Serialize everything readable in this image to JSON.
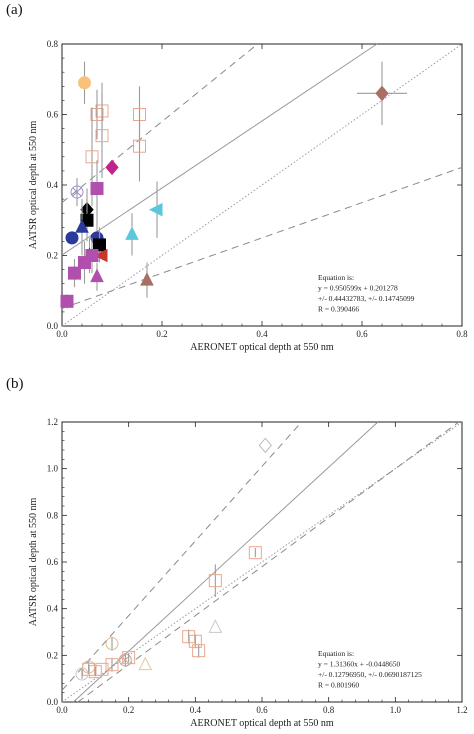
{
  "panels": [
    {
      "label": "(a)"
    },
    {
      "label": "(b)"
    }
  ],
  "colors": {
    "axis": "#222222",
    "fit_line": "#999999",
    "one_to_one": "#9a9aa8",
    "envelope": "#8a8a8a",
    "error_bar": "#9c9c9c"
  },
  "chart_data": [
    {
      "type": "scatter",
      "panel": "(a)",
      "xlabel": "AERONET optical depth at 550 nm",
      "ylabel": "AATSR optical depth at 550 nm",
      "xlim": [
        0,
        0.8
      ],
      "ylim": [
        0,
        0.8
      ],
      "xticks": [
        "0.0",
        "0.2",
        "0.4",
        "0.6",
        "0.8"
      ],
      "yticks": [
        "0.0",
        "0.2",
        "0.4",
        "0.6",
        "0.8"
      ],
      "equation": [
        "Equation is:",
        "y = 0.950599x + 0.201278",
        "+/- 0.44432783, +/- 0.14745099",
        "R = 0.390466"
      ],
      "fit": {
        "slope": 0.950599,
        "intercept": 0.201278
      },
      "envelope": {
        "upper": {
          "slope": 1.15,
          "intercept": 0.35
        },
        "lower": {
          "slope": 0.5,
          "intercept": 0.05
        }
      },
      "points": [
        {
          "x": 0.045,
          "y": 0.69,
          "marker": "circle",
          "color": "#f9c27a",
          "filled": true,
          "ey": 0.06
        },
        {
          "x": 0.08,
          "y": 0.61,
          "marker": "square",
          "color": "#e8a890",
          "filled": false,
          "ey": 0.08
        },
        {
          "x": 0.07,
          "y": 0.6,
          "marker": "square",
          "color": "#e8a890",
          "filled": false,
          "ey": 0.07
        },
        {
          "x": 0.155,
          "y": 0.6,
          "marker": "square",
          "color": "#e8a890",
          "filled": false,
          "ey": 0.08
        },
        {
          "x": 0.08,
          "y": 0.54,
          "marker": "square",
          "color": "#e8a890",
          "filled": false,
          "ey": 0.12
        },
        {
          "x": 0.155,
          "y": 0.51,
          "marker": "square",
          "color": "#e8a890",
          "filled": false,
          "ey": 0.1
        },
        {
          "x": 0.06,
          "y": 0.48,
          "marker": "square",
          "color": "#e8a890",
          "filled": false,
          "ey": 0.14
        },
        {
          "x": 0.1,
          "y": 0.45,
          "marker": "diamond",
          "color": "#c0248a",
          "filled": true,
          "ey": 0.0
        },
        {
          "x": 0.07,
          "y": 0.39,
          "marker": "square",
          "color": "#b04fae",
          "filled": true,
          "ey": 0.08
        },
        {
          "x": 0.03,
          "y": 0.38,
          "marker": "xcircle",
          "color": "#9b8ec8",
          "filled": false,
          "ey": 0.04
        },
        {
          "x": 0.05,
          "y": 0.33,
          "marker": "diamond",
          "color": "#000000",
          "filled": true,
          "ey": 0.06
        },
        {
          "x": 0.19,
          "y": 0.33,
          "marker": "triangle-left",
          "color": "#5ac8dc",
          "filled": true,
          "ey": 0.08
        },
        {
          "x": 0.05,
          "y": 0.3,
          "marker": "square",
          "color": "#000000",
          "filled": true,
          "ey": 0.06
        },
        {
          "x": 0.04,
          "y": 0.28,
          "marker": "triangle",
          "color": "#2b3a9c",
          "filled": true,
          "ey": 0.08
        },
        {
          "x": 0.14,
          "y": 0.26,
          "marker": "triangle",
          "color": "#5ac8dc",
          "filled": true,
          "ey": 0.06
        },
        {
          "x": 0.02,
          "y": 0.25,
          "marker": "circle",
          "color": "#2b3a9c",
          "filled": true,
          "ey": 0.0
        },
        {
          "x": 0.07,
          "y": 0.25,
          "marker": "circle",
          "color": "#2b3a9c",
          "filled": true,
          "ey": 0.06
        },
        {
          "x": 0.075,
          "y": 0.23,
          "marker": "square",
          "color": "#000000",
          "filled": true,
          "ey": 0.05
        },
        {
          "x": 0.055,
          "y": 0.2,
          "marker": "triangle",
          "color": "#2b3a9c",
          "filled": true,
          "ey": 0.05
        },
        {
          "x": 0.08,
          "y": 0.2,
          "marker": "triangle-left",
          "color": "#c8392b",
          "filled": true,
          "ey": 0.0
        },
        {
          "x": 0.045,
          "y": 0.18,
          "marker": "square",
          "color": "#b04fae",
          "filled": true,
          "ey": 0.06
        },
        {
          "x": 0.06,
          "y": 0.2,
          "marker": "square",
          "color": "#b04fae",
          "filled": true,
          "ey": 0.05
        },
        {
          "x": 0.025,
          "y": 0.15,
          "marker": "square",
          "color": "#b04fae",
          "filled": true,
          "ey": 0.04
        },
        {
          "x": 0.07,
          "y": 0.14,
          "marker": "triangle",
          "color": "#b04fae",
          "filled": true,
          "ey": 0.04
        },
        {
          "x": 0.17,
          "y": 0.13,
          "marker": "triangle",
          "color": "#a87065",
          "filled": true,
          "ey": 0.05
        },
        {
          "x": 0.01,
          "y": 0.07,
          "marker": "square",
          "color": "#b04fae",
          "filled": true,
          "ey": 0.02
        },
        {
          "x": 0.64,
          "y": 0.66,
          "marker": "diamond",
          "color": "#a87065",
          "filled": true,
          "ey": 0.09,
          "ex": 0.05
        }
      ]
    },
    {
      "type": "scatter",
      "panel": "(b)",
      "xlabel": "AERONET optical depth at 550 nm",
      "ylabel": "AATSR optical depth at 550 nm",
      "xlim": [
        0,
        1.2
      ],
      "ylim": [
        0,
        1.2
      ],
      "xticks": [
        "0.0",
        "0.2",
        "0.4",
        "0.6",
        "0.8",
        "1.0",
        "1.2"
      ],
      "yticks": [
        "0.0",
        "0.2",
        "0.4",
        "0.6",
        "0.8",
        "1.0",
        "1.2"
      ],
      "equation": [
        "Equation is:",
        "y = 1.31360x + -0.0448650",
        "+/- 0.12796950, +/- 0.0690187125",
        "R = 0.801960"
      ],
      "fit": {
        "slope": 1.3136,
        "intercept": -0.044865
      },
      "envelope": {
        "upper": {
          "slope": 1.6,
          "intercept": 0.05
        },
        "lower": {
          "slope": 1.05,
          "intercept": -0.05
        }
      },
      "points": [
        {
          "x": 0.61,
          "y": 1.1,
          "marker": "diamond",
          "color": "#bbbbbb",
          "filled": false,
          "ey": 0.0
        },
        {
          "x": 0.46,
          "y": 0.52,
          "marker": "square",
          "color": "#e8a890",
          "filled": false,
          "ey": 0.07
        },
        {
          "x": 0.58,
          "y": 0.64,
          "marker": "square",
          "color": "#e8a890",
          "filled": false,
          "ey": 0.02
        },
        {
          "x": 0.46,
          "y": 0.32,
          "marker": "triangle",
          "color": "#c8c8c8",
          "filled": false,
          "ey": 0.0
        },
        {
          "x": 0.38,
          "y": 0.28,
          "marker": "square",
          "color": "#e8a890",
          "filled": false,
          "ey": 0.03
        },
        {
          "x": 0.4,
          "y": 0.26,
          "marker": "square",
          "color": "#e8a890",
          "filled": false,
          "ey": 0.03
        },
        {
          "x": 0.41,
          "y": 0.22,
          "marker": "square",
          "color": "#e8a890",
          "filled": false,
          "ey": 0.03
        },
        {
          "x": 0.15,
          "y": 0.25,
          "marker": "circle",
          "color": "#e8b88a",
          "filled": false,
          "ey": 0.03
        },
        {
          "x": 0.15,
          "y": 0.16,
          "marker": "square",
          "color": "#e8a890",
          "filled": false,
          "ey": 0.03
        },
        {
          "x": 0.12,
          "y": 0.14,
          "marker": "square",
          "color": "#e8a890",
          "filled": false,
          "ey": 0.0
        },
        {
          "x": 0.19,
          "y": 0.18,
          "marker": "xcircle",
          "color": "#c8a8a0",
          "filled": false,
          "ey": 0.03
        },
        {
          "x": 0.2,
          "y": 0.19,
          "marker": "square",
          "color": "#e8a890",
          "filled": false,
          "ey": 0.02
        },
        {
          "x": 0.25,
          "y": 0.16,
          "marker": "triangle",
          "color": "#e8c8a0",
          "filled": false,
          "ey": 0.0
        },
        {
          "x": 0.08,
          "y": 0.15,
          "marker": "circle",
          "color": "#e8b88a",
          "filled": false,
          "ey": 0.03
        },
        {
          "x": 0.08,
          "y": 0.14,
          "marker": "square",
          "color": "#e8a890",
          "filled": false,
          "ey": 0.02
        },
        {
          "x": 0.1,
          "y": 0.13,
          "marker": "square",
          "color": "#e8a890",
          "filled": false,
          "ey": 0.02
        },
        {
          "x": 0.06,
          "y": 0.12,
          "marker": "circle",
          "color": "#c8c8c8",
          "filled": false,
          "ey": 0.02
        }
      ]
    }
  ]
}
